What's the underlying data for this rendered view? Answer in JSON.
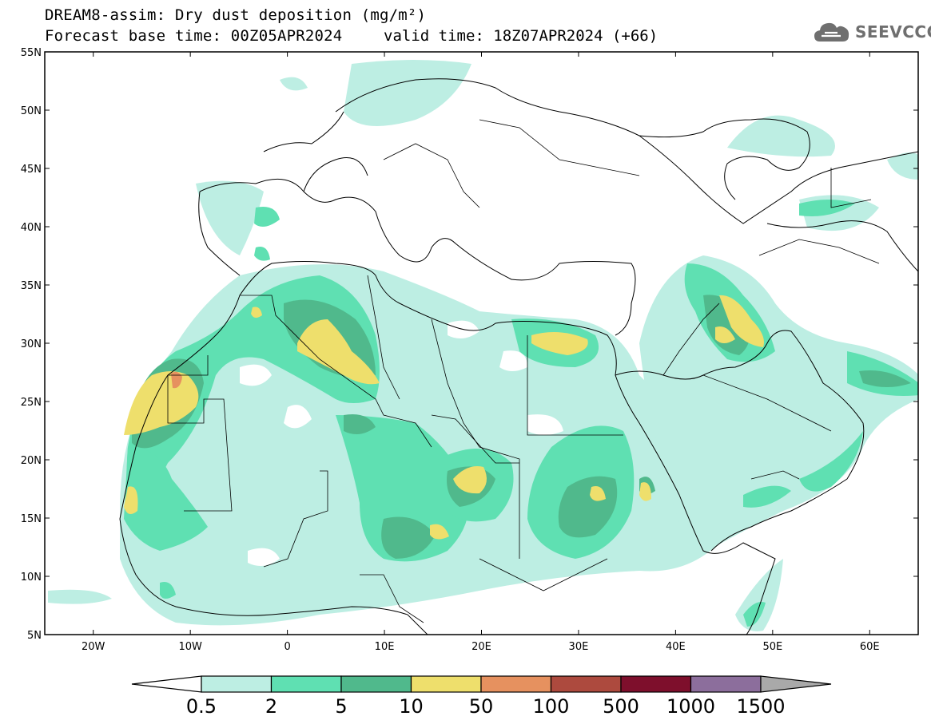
{
  "header": {
    "title_line1": "DREAM8-assim: Dry dust deposition (mg/m²)",
    "title_line2_left": "Forecast base time: 00Z05APR2024",
    "title_line2_right": "valid time: 18Z07APR2024 (+66)",
    "logo_text": "SEEVCCC",
    "logo_icon": "cloud-icon"
  },
  "map": {
    "lon_range": [
      -25,
      65
    ],
    "lat_range": [
      5,
      55
    ],
    "lat_labels": [
      "55N",
      "50N",
      "45N",
      "40N",
      "35N",
      "30N",
      "25N",
      "20N",
      "15N",
      "10N",
      "5N"
    ],
    "lon_labels": [
      "20W",
      "10W",
      "0",
      "10E",
      "20E",
      "30E",
      "40E",
      "50E",
      "60E"
    ]
  },
  "legend": {
    "thresholds": [
      "0.5",
      "2",
      "5",
      "10",
      "50",
      "100",
      "500",
      "1000",
      "1500"
    ],
    "colors": [
      "#bdeee3",
      "#5fe0b2",
      "#50b98c",
      "#eedf6c",
      "#e6915f",
      "#ad4a3e",
      "#7e0f2c",
      "#8c6e9c",
      "#a9a9a9"
    ]
  }
}
